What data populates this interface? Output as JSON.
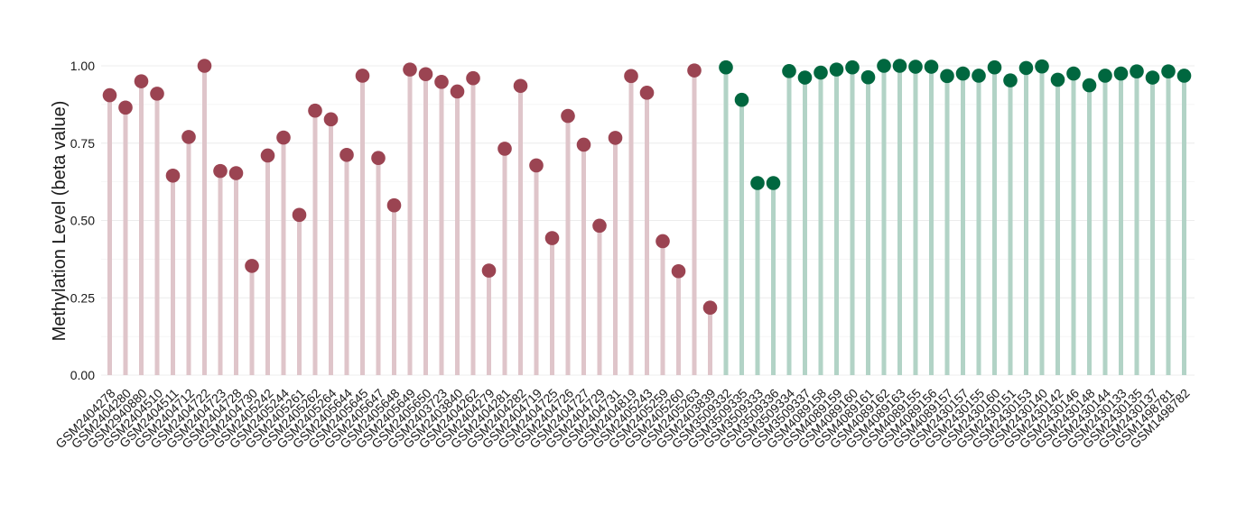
{
  "chart_data": {
    "type": "lollipop",
    "title": "",
    "xlabel": "",
    "ylabel": "Methylation Level (beta value)",
    "ylim": [
      0,
      1
    ],
    "yticks": [
      0.0,
      0.25,
      0.5,
      0.75,
      1.0
    ],
    "ytick_labels": [
      "0.00",
      "0.25",
      "0.50",
      "0.75",
      "1.00"
    ],
    "grid": true,
    "legend": "none",
    "colors": {
      "group1_dot": "#9b4452",
      "group1_stem": "#dfc5ca",
      "group2_dot": "#00673f",
      "group2_stem": "#b2d3c6",
      "grid": "#ececec",
      "text": "#1a1a1a"
    },
    "categories": [
      "GSM2404278",
      "GSM2404280",
      "GSM2940880",
      "GSM2404510",
      "GSM2404511",
      "GSM2404712",
      "GSM2404722",
      "GSM2404723",
      "GSM2404728",
      "GSM2404730",
      "GSM2405242",
      "GSM2405244",
      "GSM2405261",
      "GSM2405262",
      "GSM2405264",
      "GSM2405644",
      "GSM2405645",
      "GSM2405647",
      "GSM2405648",
      "GSM2405649",
      "GSM2405650",
      "GSM2403723",
      "GSM2403840",
      "GSM2404262",
      "GSM2404279",
      "GSM2404281",
      "GSM2404282",
      "GSM2404719",
      "GSM2404725",
      "GSM2404726",
      "GSM2404727",
      "GSM2404729",
      "GSM2404731",
      "GSM2404819",
      "GSM2405243",
      "GSM2405259",
      "GSM2405260",
      "GSM2405263",
      "GSM2403839",
      "GSM3509332",
      "GSM3509335",
      "GSM3509333",
      "GSM3509336",
      "GSM3509334",
      "GSM3509337",
      "GSM4089158",
      "GSM4089159",
      "GSM4089160",
      "GSM4089161",
      "GSM4089162",
      "GSM4089163",
      "GSM4089155",
      "GSM4089156",
      "GSM4089157",
      "GSM2430157",
      "GSM2430155",
      "GSM2430160",
      "GSM2430151",
      "GSM2430153",
      "GSM2430140",
      "GSM2430142",
      "GSM2430146",
      "GSM2430148",
      "GSM2430144",
      "GSM2430133",
      "GSM2430135",
      "GSM2430137",
      "GSM1498781",
      "GSM1498782"
    ],
    "values": [
      0.905,
      0.865,
      0.95,
      0.91,
      0.645,
      0.77,
      1.0,
      0.66,
      0.653,
      0.353,
      0.71,
      0.768,
      0.518,
      0.855,
      0.827,
      0.712,
      0.968,
      0.702,
      0.549,
      0.988,
      0.973,
      0.948,
      0.917,
      0.96,
      0.338,
      0.732,
      0.935,
      0.678,
      0.443,
      0.838,
      0.745,
      0.483,
      0.767,
      0.967,
      0.913,
      0.433,
      0.336,
      0.985,
      0.218,
      0.995,
      0.89,
      0.621,
      0.621,
      0.983,
      0.962,
      0.978,
      0.988,
      0.995,
      0.963,
      1.0,
      1.0,
      0.997,
      0.997,
      0.967,
      0.975,
      0.968,
      0.995,
      0.953,
      0.993,
      0.998,
      0.955,
      0.975,
      0.937,
      0.968,
      0.975,
      0.982,
      0.962,
      0.982,
      0.968
    ],
    "groups": [
      "g1",
      "g1",
      "g1",
      "g1",
      "g1",
      "g1",
      "g1",
      "g1",
      "g1",
      "g1",
      "g1",
      "g1",
      "g1",
      "g1",
      "g1",
      "g1",
      "g1",
      "g1",
      "g1",
      "g1",
      "g1",
      "g1",
      "g1",
      "g1",
      "g1",
      "g1",
      "g1",
      "g1",
      "g1",
      "g1",
      "g1",
      "g1",
      "g1",
      "g1",
      "g1",
      "g1",
      "g1",
      "g1",
      "g1",
      "g2",
      "g2",
      "g2",
      "g2",
      "g2",
      "g2",
      "g2",
      "g2",
      "g2",
      "g2",
      "g2",
      "g2",
      "g2",
      "g2",
      "g2",
      "g2",
      "g2",
      "g2",
      "g2",
      "g2",
      "g2",
      "g2",
      "g2",
      "g2",
      "g2",
      "g2",
      "g2",
      "g2",
      "g2",
      "g2"
    ]
  }
}
